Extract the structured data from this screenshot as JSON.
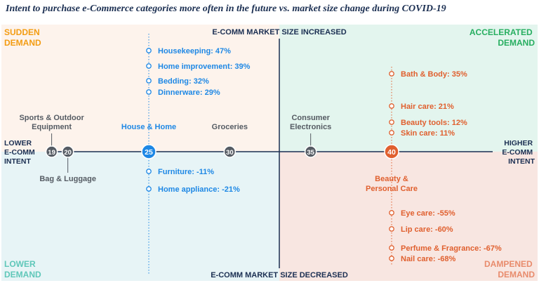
{
  "title": "Intent to purchase e-Commerce categories more often in the future vs. market size change during COVID-19",
  "colors": {
    "navy": "#1b2f52",
    "gray": "#555b63",
    "blue": "#1e88e5",
    "orange_red": "#e0602f",
    "orange": "#f39c12",
    "green": "#27ae60",
    "teal": "#5fc7b9",
    "peach": "#e88b6c",
    "bg_top_left": "#fdf3ec",
    "bg_top_right": "#e3f5ee",
    "bg_bottom_left": "#e7f4f6",
    "bg_bottom_right": "#f8e6e1"
  },
  "chart_data": {
    "type": "scatter",
    "title": "Intent to purchase e-Commerce categories more often in the future vs. market size change during COVID-19",
    "axis_labels": {
      "top": "E-COMM MARKET SIZE INCREASED",
      "bottom": "E-COMM MARKET SIZE DECREASED",
      "left": [
        "LOWER",
        "E-COMM",
        "INTENT"
      ],
      "right": [
        "HIGHER",
        "E-COMM",
        "INTENT"
      ]
    },
    "quadrants": {
      "top_left": [
        "SUDDEN",
        "DEMAND"
      ],
      "top_right": [
        "ACCELERATED",
        "DEMAND"
      ],
      "bottom_left": [
        "LOWER",
        "DEMAND"
      ],
      "bottom_right": [
        "DAMPENED",
        "DEMAND"
      ]
    },
    "points": [
      {
        "value": 19,
        "label": [
          "Sports & Outdoor",
          "Equipment"
        ],
        "color": "#555b63"
      },
      {
        "value": 20,
        "label": [
          "Bag & Luggage"
        ],
        "color": "#555b63"
      },
      {
        "value": 25,
        "label": [
          "House & Home"
        ],
        "color": "#1e88e5",
        "highlight": true
      },
      {
        "value": 30,
        "label": [
          "Groceries"
        ],
        "color": "#555b63"
      },
      {
        "value": 35,
        "label": [
          "Consumer",
          "Electronics"
        ],
        "color": "#555b63"
      },
      {
        "value": 40,
        "label": [
          "Beauty &",
          "Personal Care"
        ],
        "color": "#e0602f",
        "highlight": true
      }
    ],
    "house_home": {
      "increased": [
        "Housekeeping: 47%",
        "Home improvement: 39%",
        "Bedding: 32%",
        "Dinnerware: 29%"
      ],
      "decreased": [
        "Furniture: -11%",
        "Home appliance: -21%"
      ]
    },
    "beauty_personal_care": {
      "increased": [
        "Bath & Body: 35%",
        "Hair care: 21%",
        "Beauty tools: 12%",
        "Skin care: 11%"
      ],
      "decreased": [
        "Eye care: -55%",
        "Lip care: -60%",
        "Perfume & Fragrance: -67%",
        "Nail care: -68%"
      ]
    }
  }
}
